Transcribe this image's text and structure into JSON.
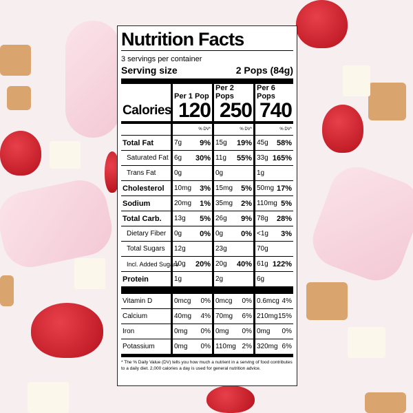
{
  "title": "Nutrition Facts",
  "servings": "3 servings per container",
  "serving_size_label": "Serving size",
  "serving_size": "2 Pops (84g)",
  "columns": [
    "Per 1 Pop",
    "Per 2 Pops",
    "Per 6 Pops"
  ],
  "calories_label": "Calories",
  "calories": [
    "120",
    "250",
    "740"
  ],
  "dv_header": "% DV*",
  "nutrients": [
    {
      "name": "Total Fat",
      "bold": true,
      "indent": 0,
      "values": [
        [
          "7g",
          "9%"
        ],
        [
          "15g",
          "19%"
        ],
        [
          "45g",
          "58%"
        ]
      ]
    },
    {
      "name": "Saturated Fat",
      "bold": false,
      "indent": 1,
      "values": [
        [
          "6g",
          "30%"
        ],
        [
          "11g",
          "55%"
        ],
        [
          "33g",
          "165%"
        ]
      ]
    },
    {
      "name": "Trans Fat",
      "bold": false,
      "indent": 1,
      "values": [
        [
          "0g"
        ],
        [
          "0g"
        ],
        [
          "1g"
        ]
      ]
    },
    {
      "name": "Cholesterol",
      "bold": true,
      "indent": 0,
      "values": [
        [
          "10mg",
          "3%"
        ],
        [
          "15mg",
          "5%"
        ],
        [
          "50mg",
          "17%"
        ]
      ]
    },
    {
      "name": "Sodium",
      "bold": true,
      "indent": 0,
      "values": [
        [
          "20mg",
          "1%"
        ],
        [
          "35mg",
          "2%"
        ],
        [
          "110mg",
          "5%"
        ]
      ]
    },
    {
      "name": "Total Carb.",
      "bold": true,
      "indent": 0,
      "values": [
        [
          "13g",
          "5%"
        ],
        [
          "26g",
          "9%"
        ],
        [
          "78g",
          "28%"
        ]
      ]
    },
    {
      "name": "Dietary Fiber",
      "bold": false,
      "indent": 1,
      "values": [
        [
          "0g",
          "0%"
        ],
        [
          "0g",
          "0%"
        ],
        [
          "<1g",
          "3%"
        ]
      ]
    },
    {
      "name": "Total Sugars",
      "bold": false,
      "indent": 1,
      "values": [
        [
          "12g"
        ],
        [
          "23g"
        ],
        [
          "70g"
        ]
      ]
    },
    {
      "name": "Incl. Added Sugars",
      "bold": false,
      "indent": 2,
      "values": [
        [
          "10g",
          "20%"
        ],
        [
          "20g",
          "40%"
        ],
        [
          "61g",
          "122%"
        ]
      ]
    },
    {
      "name": "Protein",
      "bold": true,
      "indent": 0,
      "values": [
        [
          "1g"
        ],
        [
          "2g"
        ],
        [
          "6g"
        ]
      ]
    }
  ],
  "vitamins": [
    {
      "name": "Vitamin D",
      "values": [
        [
          "0mcg",
          "0%"
        ],
        [
          "0mcg",
          "0%"
        ],
        [
          "0.6mcg",
          "4%"
        ]
      ]
    },
    {
      "name": "Calcium",
      "values": [
        [
          "40mg",
          "4%"
        ],
        [
          "70mg",
          "6%"
        ],
        [
          "210mg",
          "15%"
        ]
      ]
    },
    {
      "name": "Iron",
      "values": [
        [
          "0mg",
          "0%"
        ],
        [
          "0mg",
          "0%"
        ],
        [
          "0mg",
          "0%"
        ]
      ]
    },
    {
      "name": "Potassium",
      "values": [
        [
          "0mg",
          "0%"
        ],
        [
          "110mg",
          "2%"
        ],
        [
          "320mg",
          "6%"
        ]
      ]
    }
  ],
  "footnote": "* The % Daily Value (DV) tells you how much a nutrient in a serving of food contributes to a daily diet. 2,000 calories a day is used for general nutrition advice."
}
